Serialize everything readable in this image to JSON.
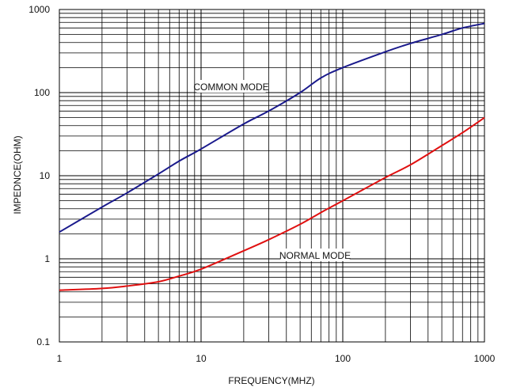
{
  "chart_data": {
    "type": "line",
    "xscale": "log",
    "yscale": "log",
    "xlim": [
      1,
      1000
    ],
    "ylim": [
      0.1,
      1000
    ],
    "grid": true,
    "xlabel": "FREQUENCY(MHZ)",
    "ylabel": "IMPEDNCE(OHM)",
    "x_ticks": [
      "1",
      "10",
      "100",
      "1000"
    ],
    "y_ticks": [
      "0.1",
      "1",
      "10",
      "100",
      "1000"
    ],
    "series": [
      {
        "name": "COMMON MODE",
        "color": "#1a1a8c",
        "points": [
          [
            1,
            2.1
          ],
          [
            2,
            4.2
          ],
          [
            3,
            6.2
          ],
          [
            5,
            10.5
          ],
          [
            7,
            15
          ],
          [
            10,
            21
          ],
          [
            20,
            42
          ],
          [
            30,
            60
          ],
          [
            50,
            100
          ],
          [
            70,
            150
          ],
          [
            100,
            200
          ],
          [
            200,
            310
          ],
          [
            300,
            390
          ],
          [
            500,
            500
          ],
          [
            700,
            600
          ],
          [
            1000,
            680
          ]
        ]
      },
      {
        "name": "NORMAL MODE",
        "color": "#e01010",
        "points": [
          [
            1,
            0.42
          ],
          [
            2,
            0.44
          ],
          [
            3,
            0.47
          ],
          [
            5,
            0.53
          ],
          [
            7,
            0.62
          ],
          [
            10,
            0.75
          ],
          [
            20,
            1.25
          ],
          [
            30,
            1.7
          ],
          [
            50,
            2.6
          ],
          [
            70,
            3.6
          ],
          [
            100,
            5
          ],
          [
            200,
            9.5
          ],
          [
            300,
            13.5
          ],
          [
            500,
            23
          ],
          [
            700,
            33
          ],
          [
            1000,
            50
          ]
        ]
      }
    ],
    "annotations": [
      "COMMON MODE",
      "NORMAL MODE"
    ]
  }
}
